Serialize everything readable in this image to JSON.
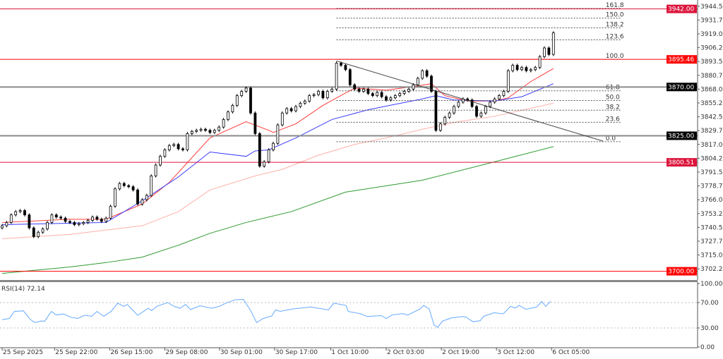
{
  "chart_data": [
    {
      "type": "candlestick",
      "price_axis": {
        "ticks": [
          "3944.50",
          "3931.75",
          "3919.00",
          "3906.25",
          "3893.50",
          "3880.75",
          "3868.00",
          "3855.25",
          "3842.50",
          "3829.75",
          "3817.00",
          "3804.25",
          "3791.50",
          "3778.75",
          "3766.00",
          "3753.25",
          "3740.50",
          "3727.75",
          "3715.00",
          "3702.25"
        ],
        "ylim": [
          3692,
          3950
        ]
      },
      "time_axis": {
        "labels": [
          {
            "bar": 0,
            "text": "25 Sep 2025"
          },
          {
            "bar": 11.6,
            "text": "25 Sep 22:00"
          },
          {
            "bar": 23.8,
            "text": "26 Sep 15:00"
          },
          {
            "bar": 36,
            "text": "29 Sep 08:00"
          },
          {
            "bar": 48.1,
            "text": "30 Sep 01:00"
          },
          {
            "bar": 60.3,
            "text": "30 Sep 17:00"
          },
          {
            "bar": 72.7,
            "text": "1 Oct 10:00"
          },
          {
            "bar": 85,
            "text": "2 Oct 03:00"
          },
          {
            "bar": 97.2,
            "text": "2 Oct 19:00"
          },
          {
            "bar": 109.4,
            "text": "3 Oct 12:00"
          },
          {
            "bar": 121.6,
            "text": "6 Oct 05:00"
          }
        ]
      },
      "first_open": 3740,
      "closes": [
        3742,
        3745,
        3752,
        3755,
        3756,
        3752,
        3740,
        3732,
        3736,
        3739,
        3745,
        3752,
        3750,
        3749,
        3746,
        3745,
        3743,
        3744,
        3745,
        3747,
        3750,
        3748,
        3746,
        3749,
        3760,
        3776,
        3781,
        3779,
        3778,
        3775,
        3762,
        3766,
        3770,
        3788,
        3798,
        3806,
        3812,
        3816,
        3817,
        3813,
        3812,
        3827,
        3829,
        3830,
        3831,
        3830,
        3828,
        3830,
        3833,
        3840,
        3847,
        3853,
        3862,
        3866,
        3869,
        3846,
        3827,
        3797,
        3801,
        3812,
        3818,
        3835,
        3846,
        3850,
        3848,
        3852,
        3855,
        3857,
        3862,
        3863,
        3866,
        3860,
        3866,
        3868,
        3892,
        3890,
        3886,
        3872,
        3868,
        3866,
        3868,
        3864,
        3862,
        3865,
        3861,
        3858,
        3860,
        3862,
        3864,
        3866,
        3868,
        3872,
        3878,
        3885,
        3880,
        3866,
        3830,
        3836,
        3842,
        3846,
        3852,
        3856,
        3859,
        3858,
        3852,
        3843,
        3846,
        3852,
        3856,
        3859,
        3862,
        3866,
        3885,
        3890,
        3886,
        3888,
        3885,
        3886,
        3888,
        3898,
        3906,
        3900,
        3920
      ],
      "moving_averages": [
        {
          "color": "#ff3b3b",
          "points": [
            [
              0,
              3745
            ],
            [
              15,
              3748
            ],
            [
              23,
              3748
            ],
            [
              31,
              3762
            ],
            [
              37,
              3782
            ],
            [
              46,
              3823
            ],
            [
              54,
              3838
            ],
            [
              59,
              3830
            ],
            [
              60,
              3828
            ],
            [
              65,
              3836
            ],
            [
              71,
              3853
            ],
            [
              78,
              3869
            ],
            [
              85,
              3867
            ],
            [
              92,
              3871
            ],
            [
              95,
              3873
            ],
            [
              98,
              3862
            ],
            [
              103,
              3857
            ],
            [
              109,
              3857
            ],
            [
              112,
              3860
            ],
            [
              117,
              3875
            ],
            [
              122,
              3887
            ]
          ]
        },
        {
          "color": "#3c3cff",
          "points": [
            [
              0,
              3743
            ],
            [
              23,
              3745
            ],
            [
              31,
              3765
            ],
            [
              39,
              3787
            ],
            [
              46,
              3810
            ],
            [
              54,
              3806
            ],
            [
              56,
              3811
            ],
            [
              59,
              3812
            ],
            [
              65,
              3823
            ],
            [
              73,
              3840
            ],
            [
              81,
              3849
            ],
            [
              87,
              3854
            ],
            [
              93,
              3859
            ],
            [
              96,
              3862
            ],
            [
              100,
              3858
            ],
            [
              109,
              3857
            ],
            [
              115,
              3861
            ],
            [
              122,
              3873
            ]
          ]
        },
        {
          "color": "#ffb0a8",
          "points": [
            [
              0,
              3730
            ],
            [
              15,
              3734
            ],
            [
              31,
              3742
            ],
            [
              39,
              3755
            ],
            [
              46,
              3775
            ],
            [
              56,
              3788
            ],
            [
              62,
              3794
            ],
            [
              70,
              3807
            ],
            [
              78,
              3817
            ],
            [
              85,
              3823
            ],
            [
              93,
              3831
            ],
            [
              101,
              3838
            ],
            [
              109,
              3843
            ],
            [
              122,
              3855
            ]
          ]
        },
        {
          "color": "#2e9a2e",
          "points": [
            [
              0,
              3698
            ],
            [
              15,
              3704
            ],
            [
              23,
              3708
            ],
            [
              31,
              3713
            ],
            [
              39,
              3724
            ],
            [
              46,
              3735
            ],
            [
              54,
              3745
            ],
            [
              64,
              3755
            ],
            [
              76,
              3773
            ],
            [
              93,
              3784
            ],
            [
              109,
              3801
            ],
            [
              122,
              3815
            ]
          ]
        }
      ],
      "horizontal_lines": [
        {
          "price": 3942.0,
          "label": "3942.00",
          "color": "#dc143c"
        },
        {
          "price": 3895.46,
          "label": "3895.46",
          "color": "#ff0000"
        },
        {
          "price": 3870.0,
          "label": "3870.00",
          "color": "#000000"
        },
        {
          "price": 3825.0,
          "label": "3825.00",
          "color": "#000000"
        },
        {
          "price": 3800.51,
          "label": "3800.51",
          "color": "#dc143c"
        },
        {
          "price": 3700.0,
          "label": "3700.00",
          "color": "#ff0000"
        }
      ],
      "trendline": {
        "from": [
          74,
          3894
        ],
        "to": [
          133,
          3820
        ]
      },
      "fibonacci": {
        "from_bar": 74,
        "to_bar": 137,
        "low": 3819.5,
        "high": 3895.5,
        "levels": [
          0.0,
          23.6,
          38.2,
          50.0,
          61.8,
          100.0,
          123.6,
          138.2,
          150.0,
          161.8
        ],
        "labels": [
          "0.0",
          "23.6",
          "38.2",
          "50.0",
          "61.8",
          "100.0",
          "123.6",
          "138.2",
          "150.0",
          "161.8"
        ]
      }
    },
    {
      "type": "line",
      "title": "RSI(14) 72.14",
      "ylim": [
        0,
        100
      ],
      "ticks": [
        "100.00",
        "70.00",
        "30.00",
        "0.00"
      ],
      "levels": [
        70,
        30
      ],
      "color": "#66aaff",
      "points": [
        [
          0,
          43
        ],
        [
          1.6,
          45
        ],
        [
          2.7,
          56
        ],
        [
          4.7,
          57
        ],
        [
          6.3,
          43
        ],
        [
          7.3,
          38.5
        ],
        [
          8.6,
          41
        ],
        [
          9.4,
          40.5
        ],
        [
          10.9,
          56
        ],
        [
          12,
          50.5
        ],
        [
          13.6,
          52
        ],
        [
          15.2,
          47
        ],
        [
          16.7,
          45
        ],
        [
          18.3,
          50
        ],
        [
          19.8,
          48.5
        ],
        [
          21,
          56
        ],
        [
          22.5,
          48.5
        ],
        [
          24.1,
          56
        ],
        [
          25.6,
          69
        ],
        [
          26.9,
          64
        ],
        [
          27.7,
          67
        ],
        [
          30,
          50
        ],
        [
          31.3,
          56
        ],
        [
          32.3,
          61
        ],
        [
          33.1,
          57.4
        ],
        [
          34.2,
          64
        ],
        [
          36.6,
          70
        ],
        [
          38.1,
          64
        ],
        [
          39.4,
          61
        ],
        [
          40.6,
          67
        ],
        [
          41.7,
          59
        ],
        [
          43.8,
          65
        ],
        [
          46.4,
          61
        ],
        [
          48,
          64
        ],
        [
          49.5,
          69
        ],
        [
          51.6,
          74.5
        ],
        [
          53.4,
          75
        ],
        [
          55,
          57.4
        ],
        [
          56.3,
          38.5
        ],
        [
          57.8,
          45
        ],
        [
          59.7,
          49
        ],
        [
          60.5,
          58.5
        ],
        [
          61.6,
          56
        ],
        [
          62,
          57
        ],
        [
          64.4,
          60
        ],
        [
          68.3,
          63
        ],
        [
          72.2,
          58.5
        ],
        [
          73.4,
          69
        ],
        [
          76.1,
          65.5
        ],
        [
          76.6,
          56
        ],
        [
          79.2,
          52.6
        ],
        [
          80.8,
          48
        ],
        [
          83.9,
          49.5
        ],
        [
          85,
          45
        ],
        [
          86.3,
          50.5
        ],
        [
          88.6,
          52.6
        ],
        [
          89.8,
          50.5
        ],
        [
          92.5,
          60
        ],
        [
          93.3,
          65.5
        ],
        [
          94.5,
          60
        ],
        [
          95.6,
          34.5
        ],
        [
          96.4,
          31
        ],
        [
          97.5,
          41
        ],
        [
          99.5,
          46
        ],
        [
          101.9,
          48
        ],
        [
          102.7,
          47
        ],
        [
          104.2,
          39.8
        ],
        [
          105.8,
          41.5
        ],
        [
          106.6,
          48.5
        ],
        [
          108.9,
          54
        ],
        [
          110.9,
          52.2
        ],
        [
          112.5,
          64
        ],
        [
          113.6,
          61.5
        ],
        [
          114.4,
          65.5
        ],
        [
          115.9,
          59.5
        ],
        [
          118.3,
          63
        ],
        [
          119.4,
          71.8
        ],
        [
          120.3,
          64
        ],
        [
          121.4,
          72.14
        ]
      ]
    }
  ]
}
